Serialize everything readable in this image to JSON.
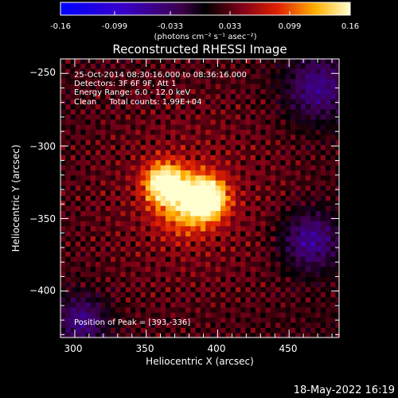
{
  "colorbar": {
    "ticks": [
      "-0.16",
      "-0.099",
      "-0.033",
      "0.033",
      "0.099",
      "0.16"
    ],
    "unit_label": "(photons cm⁻² s⁻¹ asec⁻²)"
  },
  "annotations": {
    "time_range": "25-Oct-2014 08:30:16.000 to 08:36:16.000",
    "detectors": "Detectors: 3F 6F 9F, Att 1",
    "energy": "Energy Range: 6.0 - 12.0 keV",
    "clean": "Clean     Total counts: 1.99E+04",
    "peak": "Position of Peak = [393,-336]"
  },
  "footer": {
    "timestamp": "18-May-2022 16:19"
  },
  "chart_data": {
    "type": "heatmap",
    "title": "Reconstructed RHESSI Image",
    "xlabel": "Heliocentric X (arcsec)",
    "ylabel": "Heliocentric Y (arcsec)",
    "xlim": [
      290,
      485
    ],
    "ylim": [
      -432,
      -240
    ],
    "x_ticks": [
      300,
      350,
      400,
      450
    ],
    "y_ticks": [
      -250,
      -300,
      -350,
      -400
    ],
    "x_tick_labels": [
      "300",
      "350",
      "400",
      "450"
    ],
    "y_tick_labels": [
      "−250",
      "−300",
      "−350",
      "−400"
    ],
    "colorbar_range": [
      -0.16,
      0.16
    ],
    "sources": [
      {
        "x": 393,
        "y": -336,
        "value": 0.16,
        "sigma": 9
      },
      {
        "x": 362,
        "y": -325,
        "value": 0.14,
        "sigma": 9
      },
      {
        "x": 378,
        "y": -338,
        "value": 0.1,
        "sigma": 14
      }
    ]
  }
}
